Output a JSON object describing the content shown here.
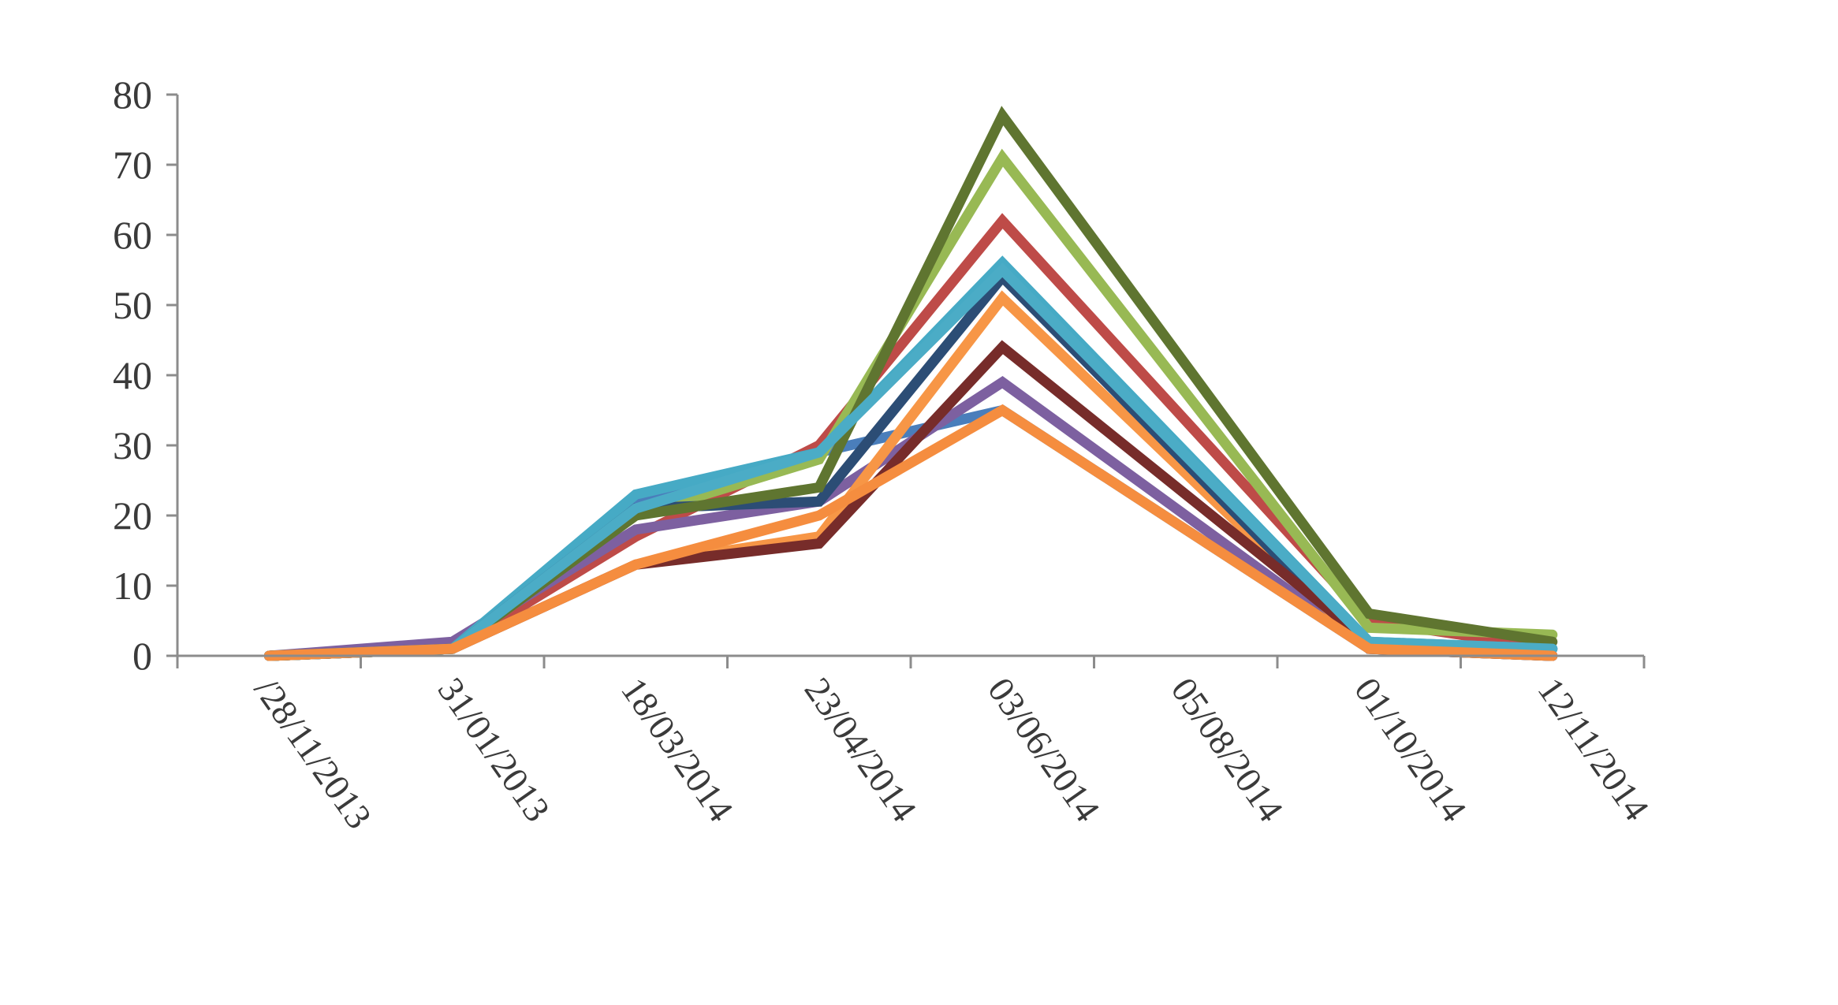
{
  "chart_data": {
    "type": "line",
    "title": "",
    "xlabel": "",
    "ylabel": "",
    "ylim": [
      0,
      80
    ],
    "yticks": [
      0,
      10,
      20,
      30,
      40,
      50,
      60,
      70,
      80
    ],
    "categories": [
      "/28/11/2013",
      "31/01/2013",
      "18/03/2014",
      "23/04/2014",
      "03/06/2014",
      "05/08/2014",
      "01/10/2014",
      "12/11/2014"
    ],
    "grid": false,
    "legend": "none",
    "series": [
      {
        "color": "#4a7ebb",
        "values": [
          0,
          1,
          22,
          29,
          35,
          null,
          1,
          0
        ]
      },
      {
        "color": "#be4b48",
        "values": [
          0,
          1,
          17,
          30,
          62,
          null,
          5,
          1
        ]
      },
      {
        "color": "#98b954",
        "values": [
          0,
          1,
          20,
          28,
          71,
          null,
          4,
          3
        ]
      },
      {
        "color": "#7d60a0",
        "values": [
          0,
          2,
          18,
          22,
          39,
          null,
          1,
          0
        ]
      },
      {
        "color": "#46aac5",
        "values": [
          0,
          1,
          23,
          29,
          56,
          null,
          2,
          1
        ]
      },
      {
        "color": "#f79646",
        "values": [
          0,
          1,
          13,
          17,
          51,
          null,
          1,
          0
        ]
      },
      {
        "color": "#2c4d75",
        "values": [
          0,
          1,
          21,
          22,
          54,
          null,
          1,
          0
        ]
      },
      {
        "color": "#772c2a",
        "values": [
          0,
          1,
          13,
          16,
          44,
          null,
          2,
          0
        ]
      },
      {
        "color": "#5f7530",
        "values": [
          0,
          1,
          20,
          24,
          77,
          null,
          6,
          2
        ]
      },
      {
        "color": "#4bacc6",
        "values": [
          0,
          1,
          21,
          29,
          55,
          null,
          2,
          1
        ]
      },
      {
        "color": "#f58d3f",
        "values": [
          0,
          1,
          13,
          20,
          35,
          null,
          1,
          0
        ]
      }
    ]
  }
}
